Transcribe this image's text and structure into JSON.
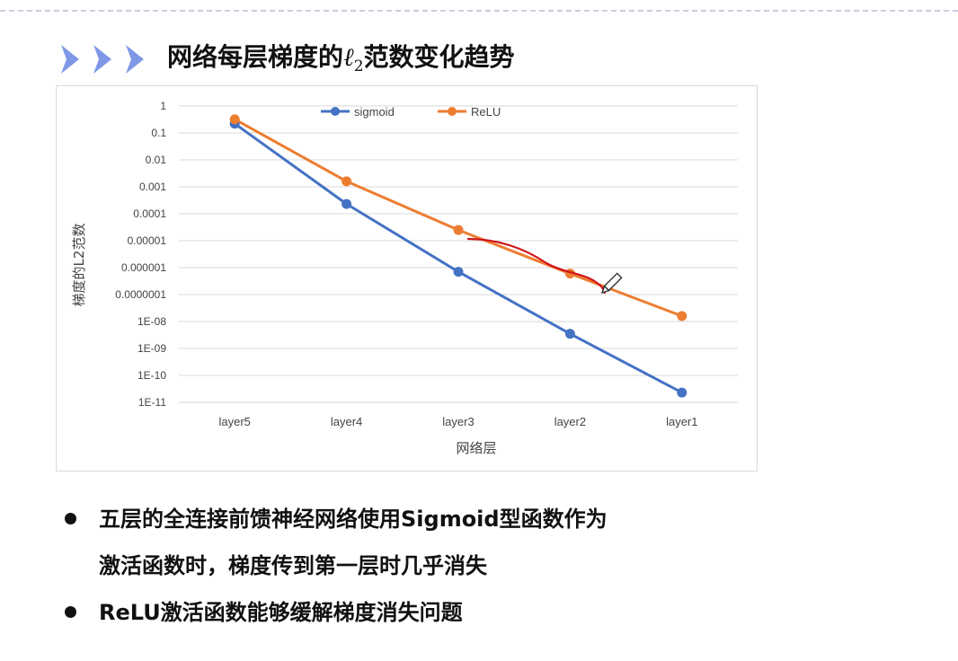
{
  "slide": {
    "title_prefix": "网络每层梯度的",
    "title_symbol": "ℓ",
    "title_sub": "2",
    "title_suffix": "范数变化趋势"
  },
  "bullets": [
    {
      "lines": [
        "五层的全连接前馈神经网络使用Sigmoid型函数作为",
        "激活函数时，梯度传到第一层时几乎消失"
      ]
    },
    {
      "lines": [
        "ReLU激活函数能够缓解梯度消失问题"
      ]
    }
  ],
  "colors": {
    "sigmoid": "#4472c4",
    "relu": "#ed7d31",
    "annotation": "#d0161b",
    "chevron": "#7f97e6"
  },
  "chart_data": {
    "type": "line",
    "title": "",
    "xlabel": "网络层",
    "ylabel": "梯度的L2范数",
    "y_scale": "log",
    "ylim": [
      1e-11,
      1
    ],
    "y_ticks": [
      1,
      0.1,
      0.01,
      0.001,
      0.0001,
      1e-05,
      1e-06,
      1e-07,
      1e-08,
      1e-09,
      1e-10,
      1e-11
    ],
    "y_tick_labels": [
      "1",
      "0.1",
      "0.01",
      "0.001",
      "0.0001",
      "0.00001",
      "0.000001",
      "0.0000001",
      "1E-08",
      "1E-09",
      "1E-10",
      "1E-11"
    ],
    "categories": [
      "layer5",
      "layer4",
      "layer3",
      "layer2",
      "layer1"
    ],
    "series": [
      {
        "name": "sigmoid",
        "values": [
          0.22,
          0.00023,
          7e-07,
          3.5e-09,
          2.3e-11
        ]
      },
      {
        "name": "ReLU",
        "values": [
          0.32,
          0.0016,
          2.5e-05,
          6e-07,
          1.6e-08
        ]
      }
    ],
    "legend": "top-center",
    "grid": true
  }
}
